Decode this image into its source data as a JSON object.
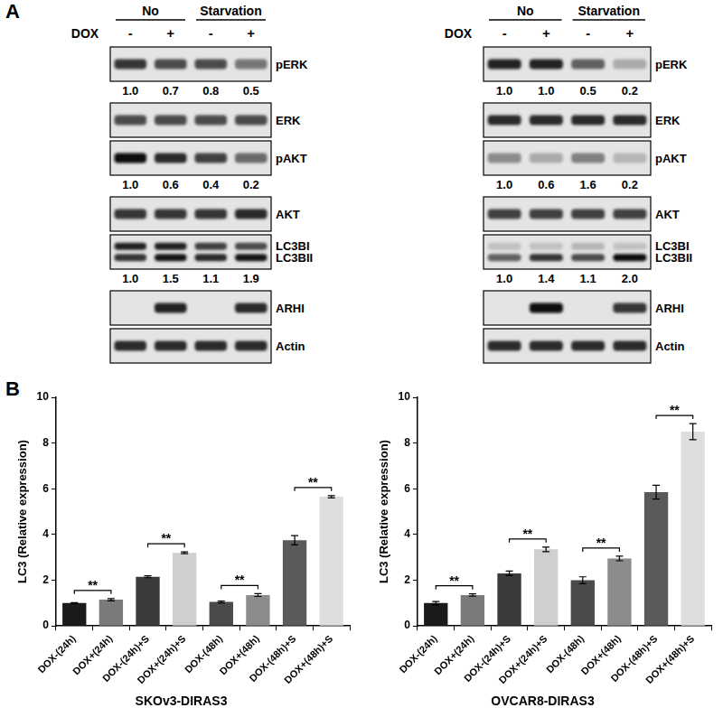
{
  "panel_a": {
    "label": "A",
    "blots": [
      {
        "groups": [
          {
            "label": "No",
            "lanes": 2
          },
          {
            "label": "Starvation",
            "lanes": 2
          }
        ],
        "treatment": {
          "label": "DOX",
          "lanes": [
            "-",
            "+",
            "-",
            "+"
          ]
        },
        "rows": [
          {
            "labels": [
              "pERK"
            ],
            "bands": [
              [
                0.8,
                0.7,
                0.7,
                0.5
              ]
            ],
            "quant": [
              "1.0",
              "0.7",
              "0.8",
              "0.5"
            ]
          },
          {
            "labels": [
              "ERK"
            ],
            "bands": [
              [
                0.7,
                0.7,
                0.7,
                0.7
              ]
            ]
          },
          {
            "labels": [
              "pAKT"
            ],
            "bands": [
              [
                1.0,
                0.85,
                0.75,
                0.55
              ]
            ],
            "quant": [
              "1.0",
              "0.6",
              "0.4",
              "0.2"
            ]
          },
          {
            "labels": [
              "AKT"
            ],
            "bands": [
              [
                0.8,
                0.8,
                0.8,
                0.85
              ]
            ]
          },
          {
            "labels": [
              "LC3BI",
              "LC3BII"
            ],
            "bands": [
              [
                0.9,
                0.9,
                0.75,
                0.7
              ],
              [
                0.8,
                0.95,
                0.85,
                0.95
              ]
            ],
            "quant": [
              "1.0",
              "1.5",
              "1.1",
              "1.9"
            ]
          },
          {
            "labels": [
              "ARHI"
            ],
            "bands": [
              [
                0,
                0.9,
                0,
                0.85
              ]
            ]
          },
          {
            "labels": [
              "Actin"
            ],
            "bands": [
              [
                0.85,
                0.85,
                0.85,
                0.85
              ]
            ]
          }
        ]
      },
      {
        "groups": [
          {
            "label": "No",
            "lanes": 2
          },
          {
            "label": "Starvation",
            "lanes": 2
          }
        ],
        "treatment": {
          "label": "DOX",
          "lanes": [
            "-",
            "+",
            "-",
            "+"
          ]
        },
        "rows": [
          {
            "labels": [
              "pERK"
            ],
            "bands": [
              [
                0.9,
                0.9,
                0.6,
                0.25
              ]
            ],
            "quant": [
              "1.0",
              "1.0",
              "0.5",
              "0.2"
            ]
          },
          {
            "labels": [
              "ERK"
            ],
            "bands": [
              [
                0.85,
                0.85,
                0.85,
                0.85
              ]
            ]
          },
          {
            "labels": [
              "pAKT"
            ],
            "bands": [
              [
                0.4,
                0.25,
                0.45,
                0.2
              ]
            ],
            "quant": [
              "1.0",
              "0.6",
              "1.6",
              "0.2"
            ]
          },
          {
            "labels": [
              "AKT"
            ],
            "bands": [
              [
                0.75,
                0.75,
                0.75,
                0.75
              ]
            ]
          },
          {
            "labels": [
              "LC3BI",
              "LC3BII"
            ],
            "bands": [
              [
                0.15,
                0.15,
                0.2,
                0.15
              ],
              [
                0.6,
                0.8,
                0.7,
                1.0
              ]
            ],
            "quant": [
              "1.0",
              "1.4",
              "1.1",
              "2.0"
            ]
          },
          {
            "labels": [
              "ARHI"
            ],
            "bands": [
              [
                0,
                1.0,
                0,
                0.8
              ]
            ]
          },
          {
            "labels": [
              "Actin"
            ],
            "bands": [
              [
                0.85,
                0.85,
                0.85,
                0.85
              ]
            ]
          }
        ]
      }
    ]
  },
  "panel_b": {
    "label": "B"
  },
  "chart_data": [
    {
      "type": "bar",
      "title": "SKOv3-DIRAS3",
      "y_label": "LC3 (Relative expression)",
      "categories": [
        "DOX-(24h)",
        "DOX+(24h)",
        "DOX-(24h)+S",
        "DOX+(24h)+S",
        "DOX-(48h)",
        "DOX+(48h)",
        "DOX-(48h)+S",
        "DOX+(48h)+S"
      ],
      "values": [
        1.0,
        1.15,
        2.15,
        3.2,
        1.05,
        1.35,
        3.75,
        5.65
      ],
      "errors": [
        0.02,
        0.05,
        0.04,
        0.04,
        0.04,
        0.06,
        0.2,
        0.05
      ],
      "colors": [
        "#1a1a1a",
        "#7a7a7a",
        "#3a3a3a",
        "#cfcfcf",
        "#4a4a4a",
        "#8c8c8c",
        "#5a5a5a",
        "#dedede"
      ],
      "significance": [
        {
          "between": [
            0,
            1
          ],
          "label": "**"
        },
        {
          "between": [
            2,
            3
          ],
          "label": "**"
        },
        {
          "between": [
            4,
            5
          ],
          "label": "**"
        },
        {
          "between": [
            6,
            7
          ],
          "label": "**"
        }
      ],
      "ylim": [
        0,
        10
      ],
      "yticks": [
        0,
        2,
        4,
        6,
        8,
        10
      ],
      "grid": false
    },
    {
      "type": "bar",
      "title": "OVCAR8-DIRAS3",
      "y_label": "LC3 (Relative expression)",
      "categories": [
        "DOX-(24h)",
        "DOX+(24h)",
        "DOX-(24h)+S",
        "DOX+(24h)+S",
        "DOX-(48h)",
        "DOX+(48h)",
        "DOX-(48h)+S",
        "DOX+(48h)+S"
      ],
      "values": [
        1.0,
        1.35,
        2.3,
        3.35,
        2.0,
        2.95,
        5.85,
        8.5
      ],
      "errors": [
        0.07,
        0.05,
        0.1,
        0.1,
        0.15,
        0.1,
        0.3,
        0.35
      ],
      "colors": [
        "#1a1a1a",
        "#7a7a7a",
        "#3a3a3a",
        "#cfcfcf",
        "#4a4a4a",
        "#8c8c8c",
        "#5a5a5a",
        "#dedede"
      ],
      "significance": [
        {
          "between": [
            0,
            1
          ],
          "label": "**"
        },
        {
          "between": [
            2,
            3
          ],
          "label": "**"
        },
        {
          "between": [
            4,
            5
          ],
          "label": "**"
        },
        {
          "between": [
            6,
            7
          ],
          "label": "**"
        }
      ],
      "ylim": [
        0,
        10
      ],
      "yticks": [
        0,
        2,
        4,
        6,
        8,
        10
      ],
      "grid": false
    }
  ]
}
